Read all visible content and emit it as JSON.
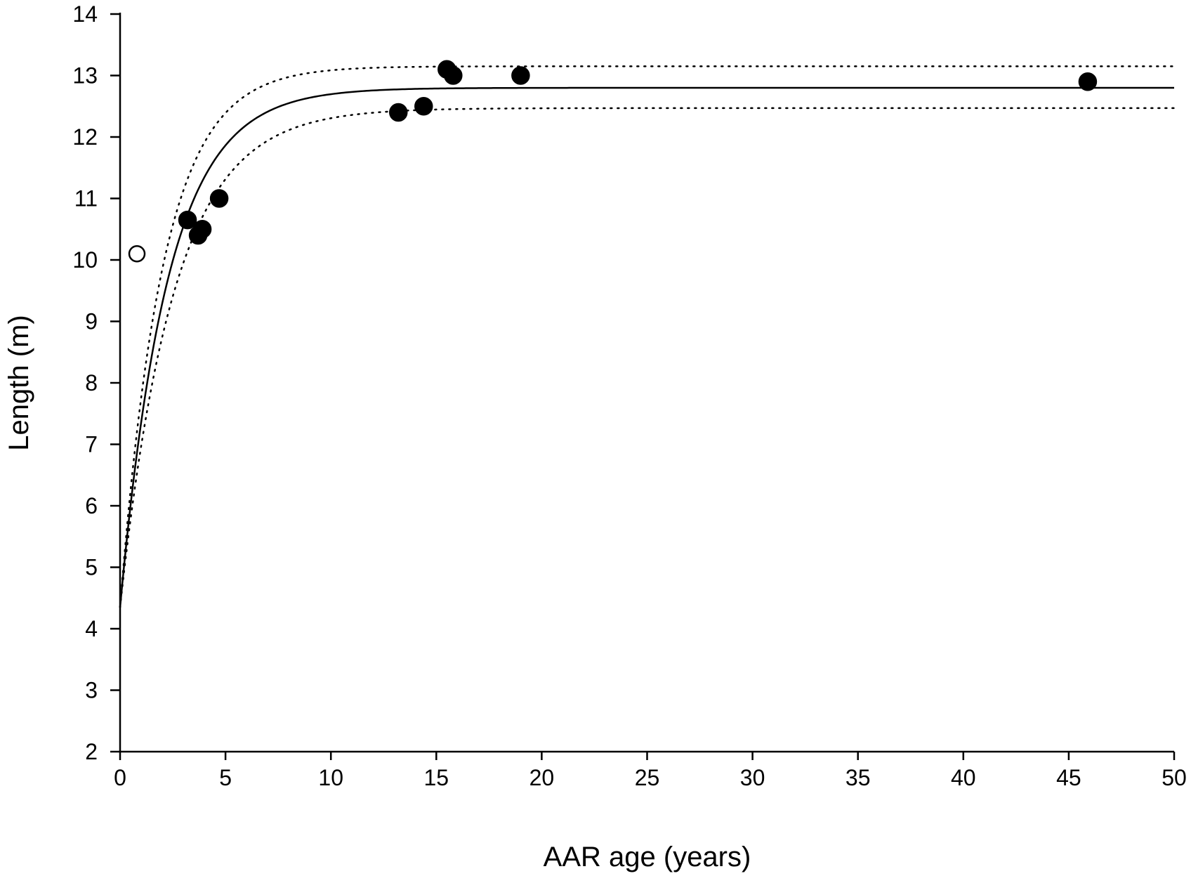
{
  "chart_data": {
    "type": "scatter",
    "title": "",
    "xlabel": "AAR age (years)",
    "ylabel": "Length  (m)",
    "xlim": [
      0,
      50
    ],
    "ylim": [
      2,
      14
    ],
    "xticks": [
      "0",
      "5",
      "10",
      "15",
      "20",
      "25",
      "30",
      "35",
      "40",
      "45",
      "50"
    ],
    "yticks": [
      "2",
      "3",
      "4",
      "5",
      "6",
      "7",
      "8",
      "9",
      "10",
      "11",
      "12",
      "13",
      "14"
    ],
    "grid": false,
    "legend": "none",
    "series": [
      {
        "marker": "filled-circle",
        "color": "#000000",
        "x": [
          3.2,
          3.7,
          3.9,
          4.7,
          13.2,
          14.4,
          15.5,
          15.8,
          19.0,
          45.9
        ],
        "y": [
          10.65,
          10.4,
          10.5,
          11.0,
          12.4,
          12.5,
          13.1,
          13.0,
          13.0,
          12.9
        ]
      },
      {
        "marker": "open-circle",
        "color": "#000000",
        "x": [
          0.8
        ],
        "y": [
          10.1
        ]
      }
    ],
    "fit": {
      "style": "solid",
      "model": "von Bertalanffy",
      "asymptote": 12.8,
      "y0": 4.35,
      "k": 0.44
    },
    "confidence_band": {
      "style": "dotted",
      "upper": {
        "asymptote": 13.15,
        "y0": 4.35,
        "k": 0.49
      },
      "lower": {
        "asymptote": 12.47,
        "y0": 4.35,
        "k": 0.39
      }
    }
  }
}
